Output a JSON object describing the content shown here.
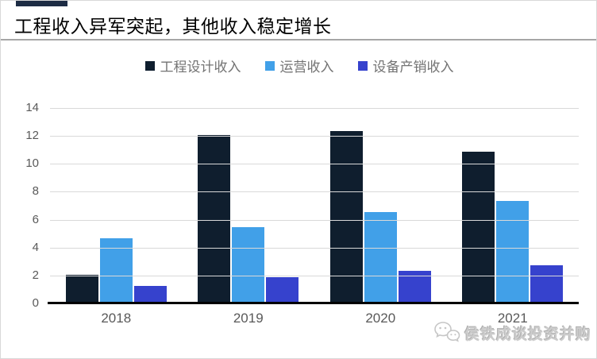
{
  "title": {
    "text": "工程收入异军突起，其他收入稳定增长"
  },
  "accent": {
    "color": "#1d2c44"
  },
  "legend": {
    "items": [
      {
        "label": "工程设计收入",
        "color": "#0f1e2e"
      },
      {
        "label": "运营收入",
        "color": "#41a0e8"
      },
      {
        "label": "设备产销收入",
        "color": "#3642cd"
      }
    ]
  },
  "watermark": {
    "icon": "wechat-icon",
    "text": "侯铁成谈投资并购",
    "color": "#c9c9c9"
  },
  "chart_data": {
    "type": "bar",
    "title": "工程收入异军突起，其他收入稳定增长",
    "categories": [
      "2018",
      "2019",
      "2020",
      "2021"
    ],
    "series": [
      {
        "name": "工程设计收入",
        "color": "#0f1e2e",
        "values": [
          2.0,
          12.0,
          12.3,
          10.8
        ]
      },
      {
        "name": "运营收入",
        "color": "#41a0e8",
        "values": [
          4.6,
          5.4,
          6.5,
          7.3
        ]
      },
      {
        "name": "设备产销收入",
        "color": "#3642cd",
        "values": [
          1.2,
          1.8,
          2.3,
          2.7
        ]
      }
    ],
    "xlabel": "",
    "ylabel": "",
    "ylim": [
      0,
      14
    ],
    "ytick_step": 2,
    "grid": true,
    "legend_position": "top",
    "gridline_color": "#d9d9d9",
    "axis_label_color": "#595959"
  }
}
